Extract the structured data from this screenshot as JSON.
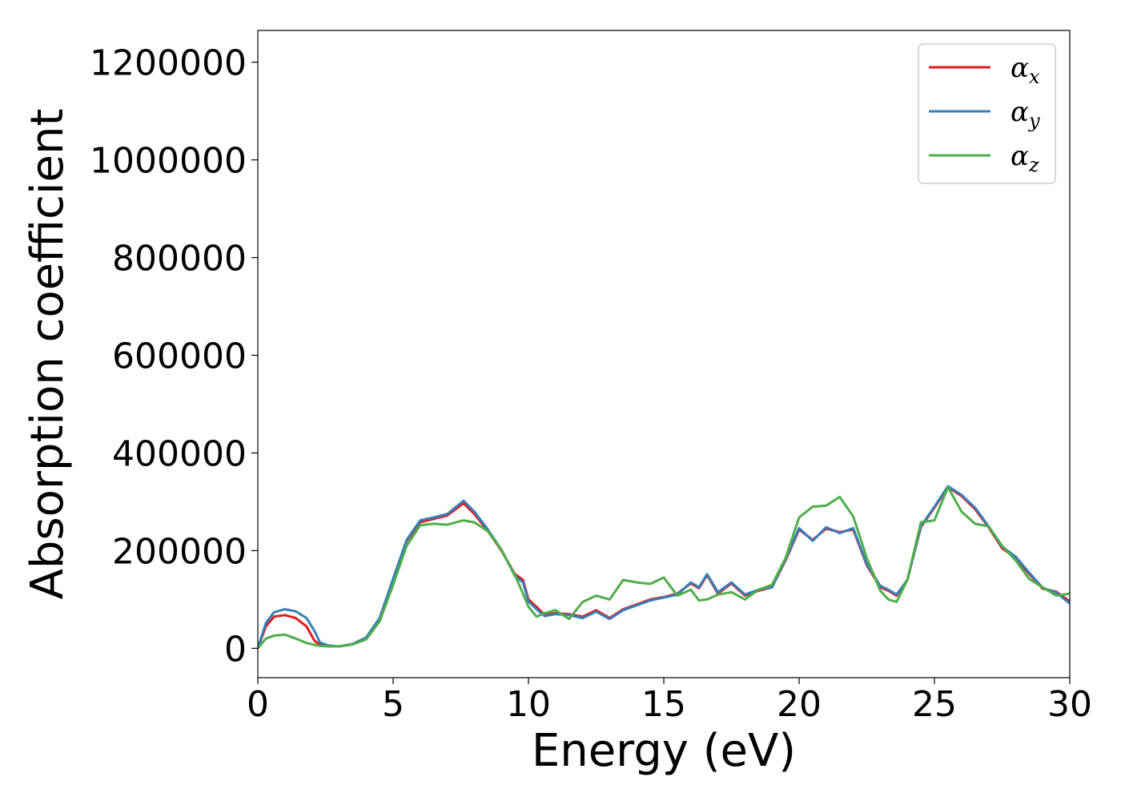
{
  "chart_data": {
    "type": "line",
    "xlabel": "Energy (eV)",
    "ylabel": "Absorption coefficient",
    "xlim": [
      0,
      30
    ],
    "ylim": [
      -60000,
      1265000
    ],
    "xticks": [
      "0",
      "5",
      "10",
      "15",
      "20",
      "25",
      "30"
    ],
    "yticks": [
      "0",
      "200000",
      "400000",
      "600000",
      "800000",
      "1000000",
      "1200000"
    ],
    "grid": false,
    "legend_position": "top-right",
    "series": [
      {
        "name": "α",
        "sub": "x",
        "color": "#e41a1c",
        "x": [
          0,
          0.3,
          0.6,
          1.0,
          1.4,
          1.8,
          2.1,
          2.3,
          2.6,
          3.0,
          3.5,
          4.0,
          4.5,
          5.0,
          5.5,
          6.0,
          6.5,
          7.0,
          7.6,
          8.0,
          8.5,
          9.0,
          9.5,
          9.8,
          10.0,
          10.3,
          10.6,
          11.0,
          11.5,
          12.0,
          12.5,
          13.0,
          13.5,
          14.0,
          14.5,
          15.0,
          15.5,
          16.0,
          16.3,
          16.6,
          17.0,
          17.5,
          18.0,
          18.5,
          19.0,
          19.5,
          20.0,
          20.5,
          21.0,
          21.5,
          22.0,
          22.5,
          23.0,
          23.3,
          23.6,
          24.0,
          24.5,
          25.0,
          25.5,
          26.0,
          26.5,
          27.0,
          27.5,
          28.0,
          28.5,
          29.0,
          29.5,
          30.0
        ],
        "y": [
          0,
          45000,
          65000,
          68000,
          62000,
          45000,
          15000,
          8000,
          5000,
          4000,
          8000,
          20000,
          60000,
          140000,
          220000,
          258000,
          265000,
          272000,
          297000,
          275000,
          240000,
          200000,
          152000,
          140000,
          100000,
          85000,
          68000,
          72000,
          70000,
          65000,
          78000,
          62000,
          80000,
          90000,
          100000,
          105000,
          112000,
          133000,
          123000,
          150000,
          112000,
          133000,
          108000,
          118000,
          125000,
          180000,
          243000,
          222000,
          245000,
          238000,
          243000,
          170000,
          125000,
          118000,
          108000,
          140000,
          248000,
          288000,
          330000,
          312000,
          285000,
          248000,
          205000,
          185000,
          152000,
          122000,
          116000,
          96000
        ]
      },
      {
        "name": "α",
        "sub": "y",
        "color": "#377eb8",
        "x": [
          0,
          0.3,
          0.6,
          1.0,
          1.4,
          1.8,
          2.1,
          2.3,
          2.6,
          3.0,
          3.5,
          4.0,
          4.5,
          5.0,
          5.5,
          6.0,
          6.5,
          7.0,
          7.6,
          8.0,
          8.5,
          9.0,
          9.5,
          9.8,
          10.0,
          10.3,
          10.6,
          11.0,
          11.5,
          12.0,
          12.5,
          13.0,
          13.5,
          14.0,
          14.5,
          15.0,
          15.5,
          16.0,
          16.3,
          16.6,
          17.0,
          17.5,
          18.0,
          18.5,
          19.0,
          19.5,
          20.0,
          20.5,
          21.0,
          21.5,
          22.0,
          22.5,
          23.0,
          23.3,
          23.6,
          24.0,
          24.5,
          25.0,
          25.5,
          26.0,
          26.5,
          27.0,
          27.5,
          28.0,
          28.5,
          29.0,
          29.5,
          30.0
        ],
        "y": [
          0,
          52000,
          74000,
          80000,
          76000,
          62000,
          35000,
          12000,
          6000,
          4000,
          9000,
          22000,
          62000,
          143000,
          222000,
          262000,
          268000,
          275000,
          302000,
          280000,
          243000,
          202000,
          148000,
          135000,
          96000,
          80000,
          66000,
          70000,
          68000,
          62000,
          75000,
          60000,
          78000,
          88000,
          98000,
          104000,
          110000,
          135000,
          125000,
          152000,
          115000,
          135000,
          110000,
          120000,
          125000,
          182000,
          246000,
          220000,
          248000,
          236000,
          246000,
          172000,
          128000,
          120000,
          110000,
          140000,
          250000,
          290000,
          332000,
          314000,
          288000,
          250000,
          208000,
          188000,
          155000,
          124000,
          114000,
          92000
        ]
      },
      {
        "name": "α",
        "sub": "z",
        "color": "#4daf4a",
        "x": [
          0,
          0.3,
          0.6,
          1.0,
          1.4,
          1.8,
          2.1,
          2.3,
          2.6,
          3.0,
          3.5,
          4.0,
          4.5,
          5.0,
          5.5,
          6.0,
          6.5,
          7.0,
          7.6,
          8.0,
          8.5,
          9.0,
          9.5,
          9.8,
          10.0,
          10.3,
          10.6,
          11.0,
          11.5,
          12.0,
          12.5,
          13.0,
          13.5,
          14.0,
          14.5,
          15.0,
          15.5,
          16.0,
          16.3,
          16.6,
          17.0,
          17.5,
          18.0,
          18.5,
          19.0,
          19.5,
          20.0,
          20.5,
          21.0,
          21.5,
          22.0,
          22.5,
          23.0,
          23.3,
          23.6,
          24.0,
          24.5,
          25.0,
          25.5,
          26.0,
          26.5,
          27.0,
          27.5,
          28.0,
          28.5,
          29.0,
          29.5,
          30.0
        ],
        "y": [
          0,
          20000,
          26000,
          28000,
          20000,
          11000,
          7000,
          5000,
          4000,
          4000,
          8000,
          18000,
          55000,
          130000,
          210000,
          252000,
          255000,
          253000,
          262000,
          258000,
          240000,
          202000,
          150000,
          112000,
          85000,
          65000,
          72000,
          78000,
          60000,
          95000,
          108000,
          100000,
          140000,
          135000,
          132000,
          145000,
          108000,
          120000,
          98000,
          100000,
          110000,
          115000,
          100000,
          120000,
          130000,
          185000,
          268000,
          290000,
          292000,
          310000,
          270000,
          185000,
          118000,
          100000,
          95000,
          140000,
          258000,
          262000,
          330000,
          280000,
          255000,
          250000,
          210000,
          180000,
          142000,
          125000,
          108000,
          112000
        ]
      }
    ]
  }
}
